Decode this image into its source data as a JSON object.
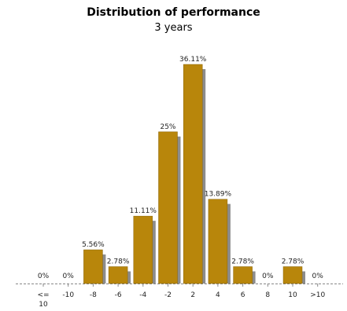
{
  "chart_data": {
    "type": "bar",
    "title": "Distribution of performance",
    "subtitle": "3 years",
    "categories": [
      "<=\n10",
      "-10",
      "-8",
      "-6",
      "-4",
      "-2",
      "2",
      "4",
      "6",
      "8",
      "10",
      ">10"
    ],
    "values": [
      0,
      0,
      5.56,
      2.78,
      11.11,
      25,
      36.11,
      13.89,
      2.78,
      0,
      2.78,
      0
    ],
    "data_labels": [
      "0%",
      "0%",
      "5.56%",
      "2.78%",
      "11.11%",
      "25%",
      "36.11%",
      "13.89%",
      "2.78%",
      "0%",
      "2.78%",
      "0%"
    ],
    "xlabel": "",
    "ylabel": "",
    "ylim": [
      0,
      36.11
    ],
    "grid": false,
    "legend": "none",
    "colors": {
      "bar": "#b8860b",
      "bar_edge": "#8a6408",
      "shadow": "#8c8c8c",
      "axis": "#888888"
    }
  }
}
